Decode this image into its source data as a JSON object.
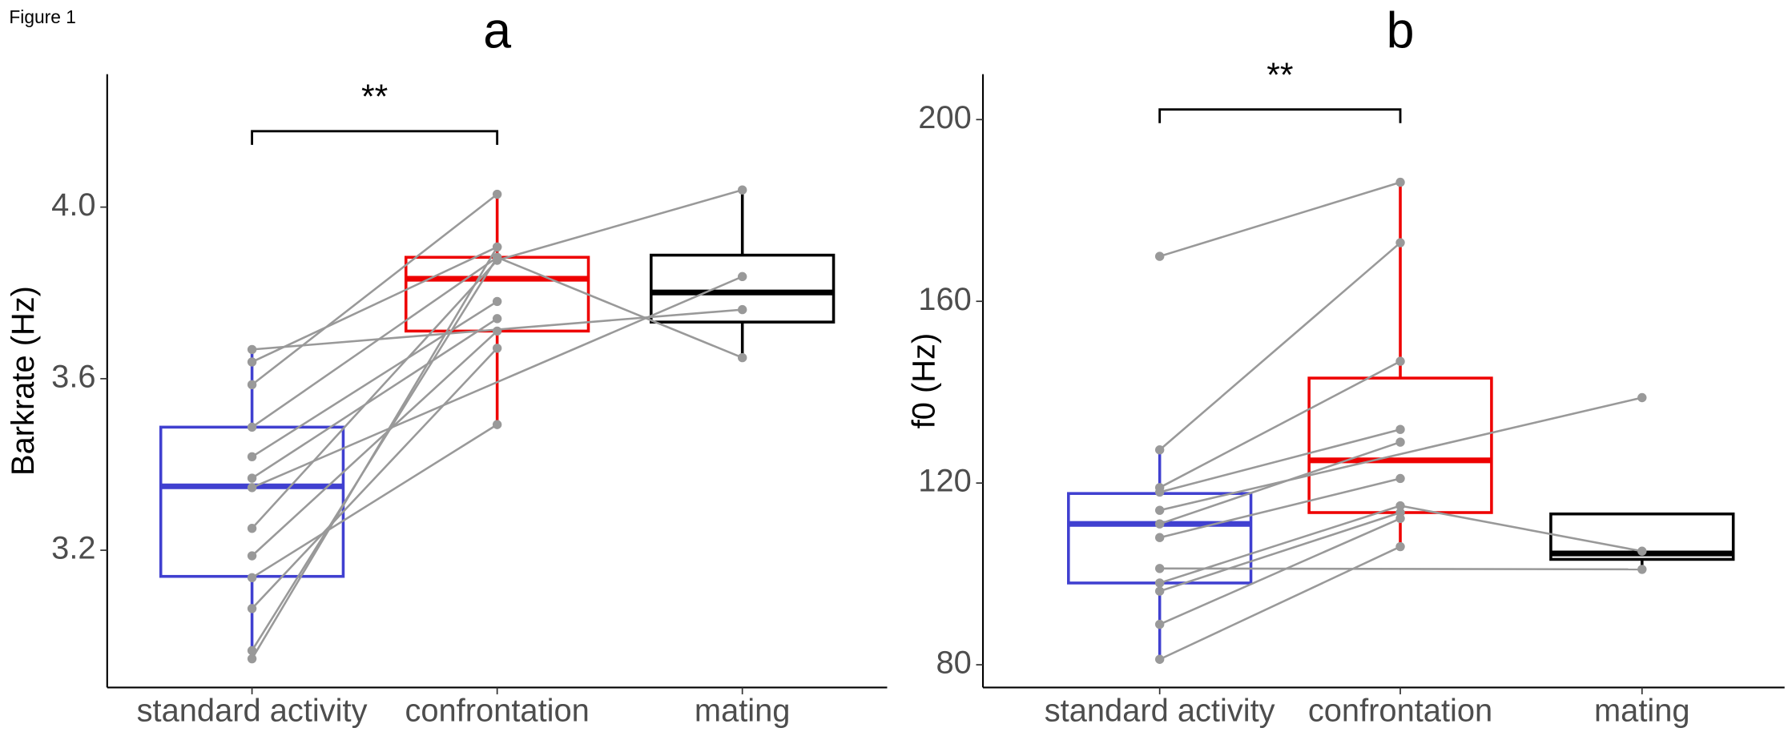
{
  "figure_label": "Figure 1",
  "chart_data": [
    {
      "type": "box",
      "title": "a",
      "y_label": "Barkrate (Hz)",
      "categories": [
        "standard activity",
        "confrontation",
        "mating"
      ],
      "colors": [
        "#4040d0",
        "#ee0000",
        "#000000"
      ],
      "point_color": "#999999",
      "ylim": [
        2.88,
        4.31
      ],
      "yticks": [
        {
          "value": 3.2,
          "label": "3.2"
        },
        3.6,
        {
          "value": 4,
          "label": "4.0"
        }
      ],
      "boxes": [
        {
          "low": 2.947,
          "q1": 3.139,
          "median": 3.349,
          "q3": 3.487,
          "high": 3.668
        },
        {
          "low": 3.493,
          "q1": 3.711,
          "median": 3.833,
          "q3": 3.883,
          "high": 4.03
        },
        {
          "low": 3.649,
          "q1": 3.732,
          "median": 3.801,
          "q3": 3.888,
          "high": 4.04
        }
      ],
      "individuals": [
        [
          3.668,
          null,
          3.761
        ],
        [
          3.639,
          3.907,
          null
        ],
        [
          3.586,
          4.03,
          null
        ],
        [
          3.487,
          3.883,
          3.649
        ],
        [
          3.418,
          3.78,
          null
        ],
        [
          3.368,
          3.74,
          null
        ],
        [
          3.346,
          null,
          3.838
        ],
        [
          3.251,
          3.876,
          4.04
        ],
        [
          3.187,
          3.711,
          null
        ],
        [
          3.136,
          3.493,
          null
        ],
        [
          3.064,
          3.671,
          null
        ],
        [
          2.966,
          3.883,
          null
        ],
        [
          2.947,
          3.907,
          null
        ]
      ],
      "significance": {
        "from": 0,
        "to": 1,
        "label": "**"
      }
    },
    {
      "type": "box",
      "title": "b",
      "y_label": "f0 (Hz)",
      "categories": [
        "standard activity",
        "confrontation",
        "mating"
      ],
      "colors": [
        "#4040d0",
        "#ee0000",
        "#000000"
      ],
      "point_color": "#999999",
      "ylim": [
        75,
        210
      ],
      "yticks": [
        80,
        120,
        160,
        200
      ],
      "boxes": [
        {
          "low": 81.2,
          "q1": 98,
          "median": 111,
          "q3": 117.7,
          "high": 127.3
        },
        {
          "low": 106,
          "q1": 113.5,
          "median": 125,
          "q3": 143.1,
          "high": 186.2
        },
        {
          "low": 101,
          "q1": 103.2,
          "median": 104.5,
          "q3": 113.2,
          "high": 113.2
        }
      ],
      "individuals": [
        [
          169.9,
          186.2,
          null
        ],
        [
          127.3,
          172.9,
          null
        ],
        [
          119,
          146.8,
          null
        ],
        [
          118,
          131.8,
          null
        ],
        [
          114,
          null,
          138.8
        ],
        [
          111,
          129,
          null
        ],
        [
          108,
          121,
          null
        ],
        [
          101.2,
          null,
          101
        ],
        [
          98,
          115,
          105
        ],
        [
          96.2,
          113.5,
          null
        ],
        [
          88.9,
          112.2,
          null
        ],
        [
          81.2,
          106,
          null
        ]
      ],
      "significance": {
        "from": 0,
        "to": 1,
        "label": "**"
      }
    }
  ]
}
